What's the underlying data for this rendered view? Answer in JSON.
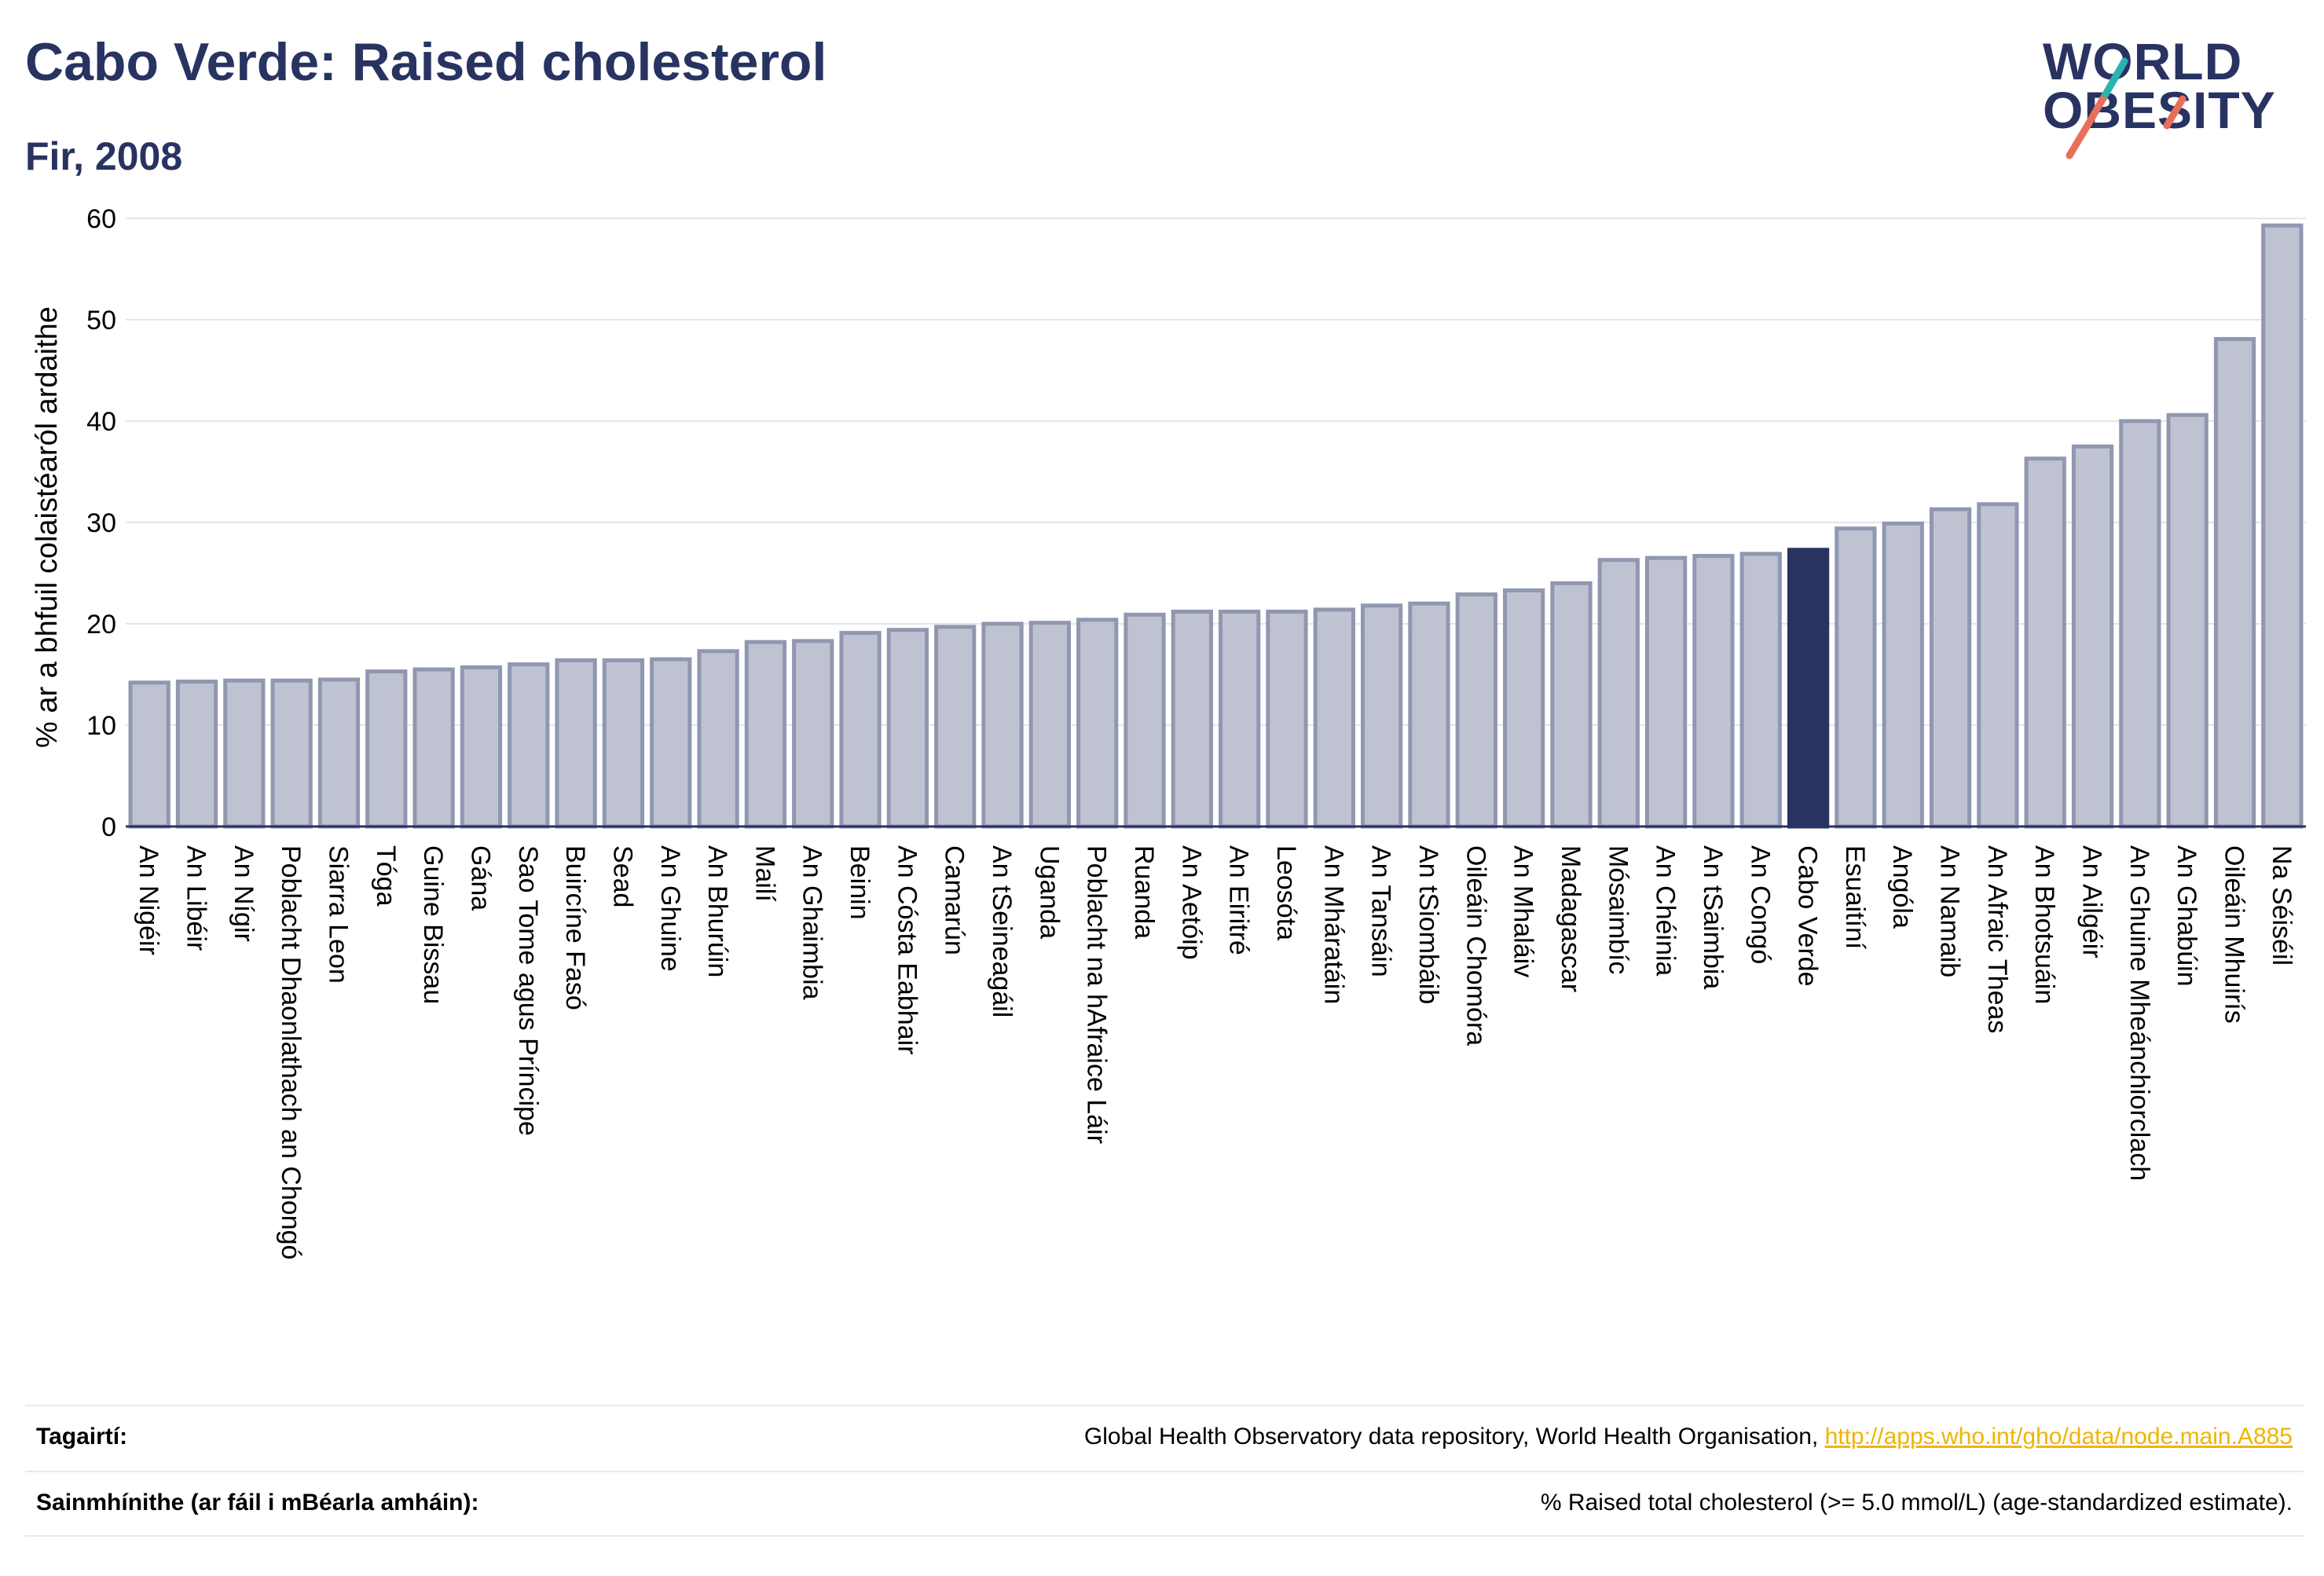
{
  "header": {
    "title": "Cabo Verde: Raised cholesterol",
    "subtitle": "Fir, 2008"
  },
  "logo": {
    "line1": "WORLD",
    "line2": "OBESITY"
  },
  "colors": {
    "bar": "#bfc3d1",
    "bar_border": "#9097b0",
    "highlight": "#283361",
    "text_dark": "#283361",
    "link": "#f0b400"
  },
  "chart_data": {
    "type": "bar",
    "ylabel": "% ar a bhfuil colaistéaról ardaithe",
    "ylim": [
      0,
      60
    ],
    "yticks": [
      0,
      10,
      20,
      30,
      40,
      50,
      60
    ],
    "grid": true,
    "highlight": "Cabo Verde",
    "categories": [
      "An Nigéir",
      "An Libéir",
      "An Nígir",
      "Poblacht Dhaonlathach an Chongó",
      "Siarra Leon",
      "Tóga",
      "Guine Bissau",
      "Gána",
      "Sao Tome agus Príncipe",
      "Buircíne Fasó",
      "Sead",
      "An Ghuine",
      "An Bhurúin",
      "Mailí",
      "An Ghaimbia",
      "Beinin",
      "An Cósta Eabhair",
      "Camarún",
      "An tSeineagáil",
      "Uganda",
      "Poblacht na hAfraice Láir",
      "Ruanda",
      "An Aetóip",
      "An Eiritré",
      "Leosóta",
      "An Mháratáin",
      "An Tansáin",
      "An tSiombáib",
      "Oileáin Chomóra",
      "An Mhaláiv",
      "Madagascar",
      "Mósaimbíc",
      "An Chéinia",
      "An tSaimbia",
      "An Congó",
      "Cabo Verde",
      "Esuaitíní",
      "Angóla",
      "An Namaib",
      "An Afraic Theas",
      "An Bhotsuáin",
      "An Ailgéir",
      "An Ghuine Mheánchiorclach",
      "An Ghabúin",
      "Oileáin Mhuirís",
      "Na Séiséil"
    ],
    "values": [
      14.2,
      14.3,
      14.4,
      14.4,
      14.5,
      15.3,
      15.5,
      15.7,
      16.0,
      16.4,
      16.4,
      16.5,
      17.3,
      18.2,
      18.3,
      19.1,
      19.4,
      19.7,
      20.0,
      20.1,
      20.4,
      20.9,
      21.2,
      21.2,
      21.2,
      21.4,
      21.8,
      22.0,
      22.9,
      23.3,
      24.0,
      26.3,
      26.5,
      26.7,
      26.9,
      27.3,
      29.4,
      29.9,
      31.3,
      31.8,
      36.3,
      37.5,
      40.0,
      40.6,
      48.1,
      59.3
    ]
  },
  "footer": {
    "references_label": "Tagairtí:",
    "references_text": "Global Health Observatory data repository, World Health Organisation, ",
    "references_link": "http://apps.who.int/gho/data/node.main.A885",
    "definitions_label": "Sainmhínithe (ar fáil i mBéarla amháin):",
    "definitions_text": "% Raised total cholesterol (>= 5.0 mmol/L) (age-standardized estimate)."
  }
}
